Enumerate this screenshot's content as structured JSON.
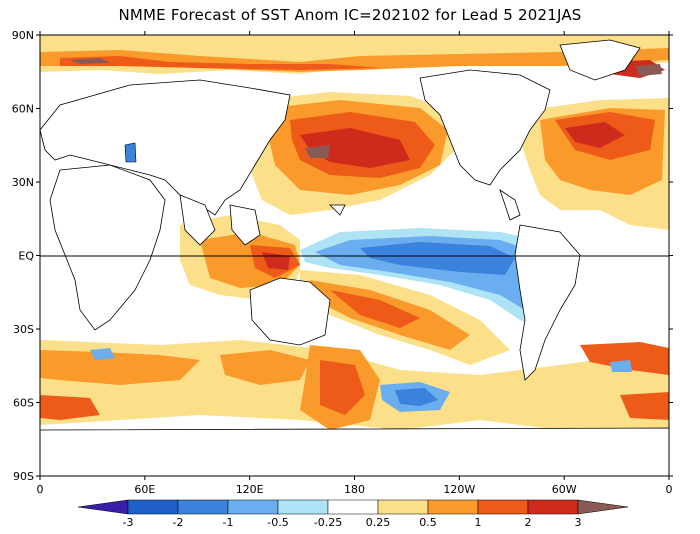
{
  "title": "NMME Forecast of SST Anom IC=202102 for Lead 5 2021JAS",
  "map": {
    "lat_labels": [
      "90N",
      "60N",
      "30N",
      "EQ",
      "30S",
      "60S",
      "90S"
    ],
    "lon_labels": [
      "0",
      "60E",
      "120E",
      "180",
      "120W",
      "60W",
      "0"
    ],
    "equator_line": true
  },
  "colorbar": {
    "labels": [
      "-3",
      "-2",
      "-1",
      "-0.5",
      "-0.25",
      "0.25",
      "0.5",
      "1",
      "2",
      "3"
    ],
    "colors": {
      "below_-3": "#3a1fa8",
      "-3_-2": "#1f5fc9",
      "-2_-1": "#3b82dc",
      "-1_-0.5": "#6aaef0",
      "-0.5_-0.25": "#aee3f5",
      "-0.25_0.25": "#ffffff",
      "0.25_0.5": "#fbe089",
      "0.5_1": "#f99a2a",
      "1_2": "#ee5a18",
      "2_3": "#cf2b1c",
      "above_3": "#8a5a56",
      "land": "#ffffff",
      "coast": "#000000"
    }
  }
}
